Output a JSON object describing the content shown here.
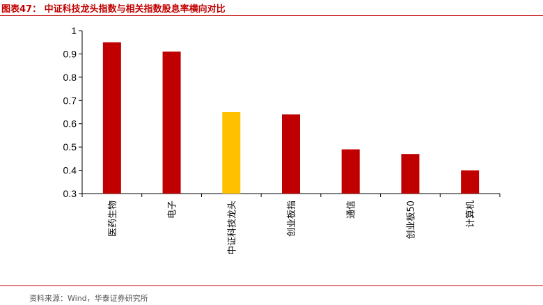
{
  "header": {
    "title": "图表47：  中证科技龙头指数与相关指数股息率横向对比"
  },
  "footer": {
    "source": "资料来源：Wind，华泰证券研究所"
  },
  "colors": {
    "default_bar": "#c00000",
    "highlight_bar": "#ffc000",
    "accent": "#c00000"
  },
  "chart_data": {
    "type": "bar",
    "categories": [
      "医药生物",
      "电子",
      "中证科技龙头",
      "创业板指",
      "通信",
      "创业板50",
      "计算机"
    ],
    "values": [
      0.95,
      0.91,
      0.65,
      0.64,
      0.49,
      0.47,
      0.4
    ],
    "highlight_index": 2,
    "ylim": [
      0.3,
      1
    ],
    "yticks": [
      "0.3",
      "0.4",
      "0.5",
      "0.6",
      "0.7",
      "0.8",
      "0.9",
      "1"
    ],
    "grid": false,
    "legend": "none"
  }
}
